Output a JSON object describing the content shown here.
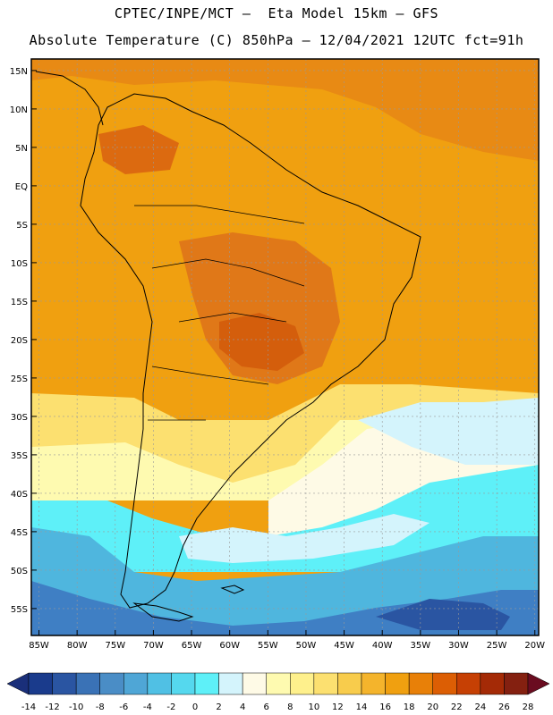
{
  "header": {
    "line1": "CPTEC/INPE/MCT –  Eta Model 15km – GFS",
    "line2": "Absolute Temperature (C) 850hPa – 12/04/2021 12UTC fct=91h"
  },
  "map": {
    "lat_labels": [
      "15N",
      "10N",
      "5N",
      "EQ",
      "5S",
      "10S",
      "15S",
      "20S",
      "25S",
      "30S",
      "35S",
      "40S",
      "45S",
      "50S",
      "55S"
    ],
    "lon_labels": [
      "85W",
      "80W",
      "75W",
      "70W",
      "65W",
      "60W",
      "55W",
      "50W",
      "45W",
      "40W",
      "35W",
      "30W",
      "25W",
      "20W"
    ]
  },
  "colorbar": {
    "labels": [
      "-14",
      "-12",
      "-10",
      "-8",
      "-6",
      "-4",
      "-2",
      "0",
      "2",
      "4",
      "6",
      "8",
      "10",
      "12",
      "14",
      "16",
      "18",
      "20",
      "22",
      "24",
      "26",
      "28"
    ],
    "colors": [
      "#1a3b8c",
      "#2a55a2",
      "#3a72b6",
      "#4a8dc6",
      "#4fa6d6",
      "#50c0e4",
      "#55d8ee",
      "#5ef0f8",
      "#d4f4fc",
      "#fefae6",
      "#fefab0",
      "#fef08c",
      "#fce070",
      "#f8cc4c",
      "#f4b42c",
      "#f0a010",
      "#e88008",
      "#dc5e04",
      "#c64004",
      "#a42a06",
      "#842010"
    ],
    "low_arrow": "#1a2f7a",
    "high_arrow": "#6a0c20"
  },
  "regions": [
    {
      "name": "south-ocean-deep",
      "color": "#3f7fc4"
    },
    {
      "name": "south-ocean-mid",
      "color": "#4fb6de"
    },
    {
      "name": "south-ocean-cyan",
      "color": "#5ef0f8"
    },
    {
      "name": "atlantic-pale-cyan",
      "color": "#d4f4fc"
    },
    {
      "name": "south-cream",
      "color": "#fefae6"
    },
    {
      "name": "south-yellow",
      "color": "#fef08c"
    },
    {
      "name": "warm-orange",
      "color": "#f0a010"
    },
    {
      "name": "hot-core",
      "color": "#e07818"
    },
    {
      "name": "hottest-core",
      "color": "#d45e0c"
    }
  ]
}
